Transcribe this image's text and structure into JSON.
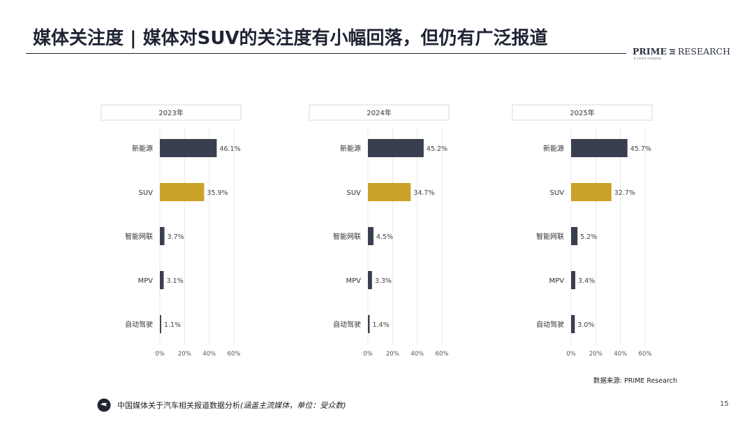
{
  "header": {
    "title": "媒体关注度 | 媒体对SUV的关注度有小幅回落，但仍有广泛报道"
  },
  "logo": {
    "brand_bold": "PRIME",
    "brand_regular": "RESEARCH",
    "tagline": "a cision company"
  },
  "chart_data": [
    {
      "type": "bar",
      "orientation": "horizontal",
      "title": "2023年",
      "categories": [
        "新能源",
        "SUV",
        "智能网联",
        "MPV",
        "自动驾驶"
      ],
      "values": [
        46.1,
        35.9,
        3.7,
        3.1,
        1.1
      ],
      "value_labels": [
        "46.1%",
        "35.9%",
        "3.7%",
        "3.1%",
        "1.1%"
      ],
      "xlim": [
        0,
        60
      ],
      "xticks": [
        "0%",
        "20%",
        "40%",
        "60%"
      ],
      "grid": true,
      "highlight_category": "SUV",
      "colors": {
        "default": "#3a3f4f",
        "highlight": "#c9a227"
      }
    },
    {
      "type": "bar",
      "orientation": "horizontal",
      "title": "2024年",
      "categories": [
        "新能源",
        "SUV",
        "智能网联",
        "MPV",
        "自动驾驶"
      ],
      "values": [
        45.2,
        34.7,
        4.5,
        3.3,
        1.4
      ],
      "value_labels": [
        "45.2%",
        "34.7%",
        "4.5%",
        "3.3%",
        "1.4%"
      ],
      "xlim": [
        0,
        60
      ],
      "xticks": [
        "0%",
        "20%",
        "40%",
        "60%"
      ],
      "grid": true,
      "highlight_category": "SUV",
      "colors": {
        "default": "#3a3f4f",
        "highlight": "#c9a227"
      }
    },
    {
      "type": "bar",
      "orientation": "horizontal",
      "title": "2025年",
      "categories": [
        "新能源",
        "SUV",
        "智能网联",
        "MPV",
        "自动驾驶"
      ],
      "values": [
        45.7,
        32.7,
        5.2,
        3.4,
        3.0
      ],
      "value_labels": [
        "45.7%",
        "32.7%",
        "5.2%",
        "3.4%",
        "3.0%"
      ],
      "xlim": [
        0,
        60
      ],
      "xticks": [
        "0%",
        "20%",
        "40%",
        "60%"
      ],
      "grid": true,
      "highlight_category": "SUV",
      "colors": {
        "default": "#3a3f4f",
        "highlight": "#c9a227"
      }
    }
  ],
  "source": "数据来源: PRIME Research",
  "footer": {
    "icon": "chat-bubble-icon",
    "text": "中国媒体关于汽车相关报道数据分析",
    "note": "(涵盖主流媒体，单位：受众数)"
  },
  "page_number": "15"
}
